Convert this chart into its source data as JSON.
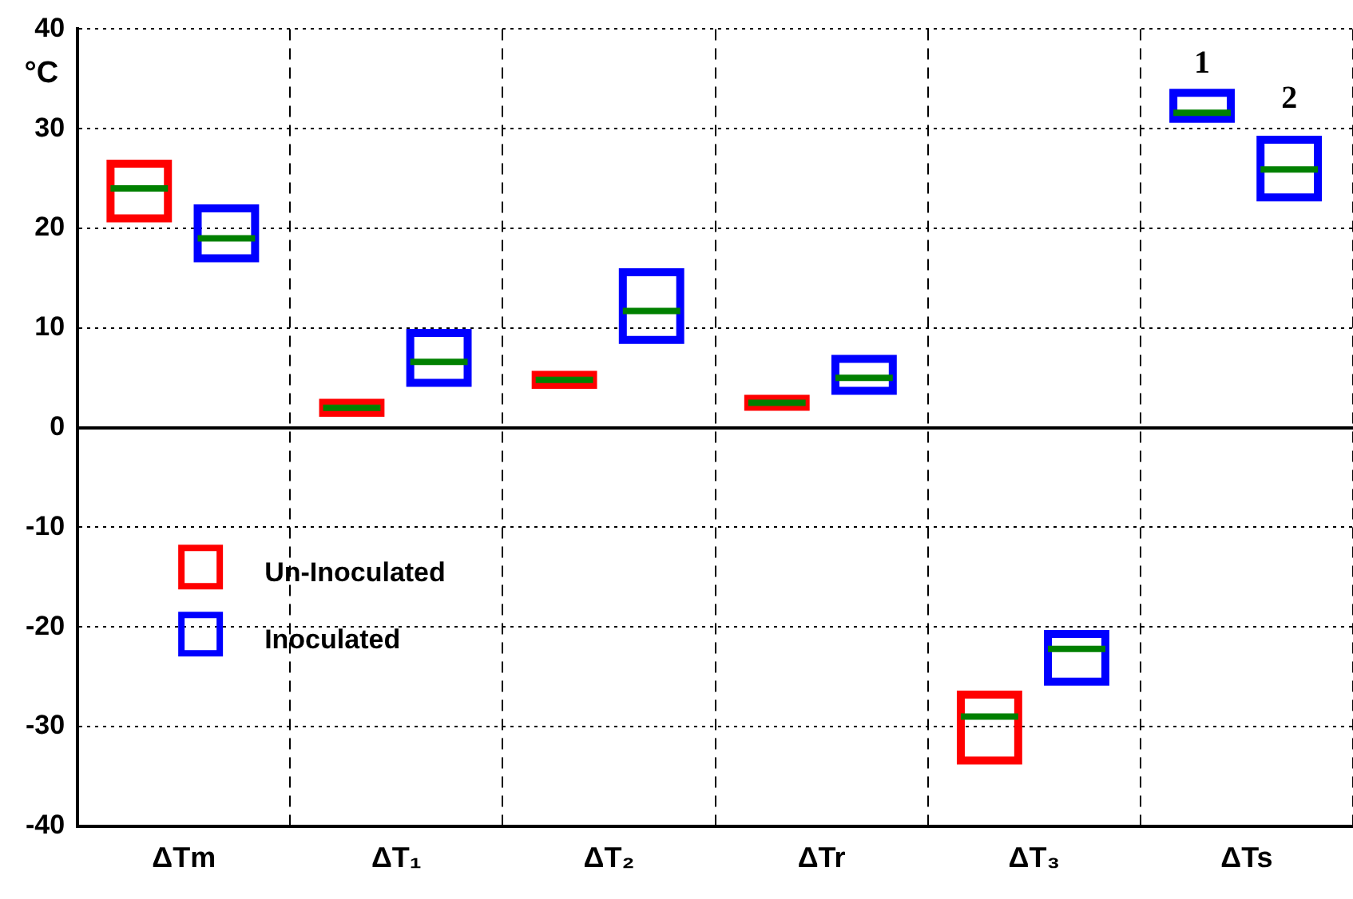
{
  "chart_data": {
    "type": "box",
    "ylabel": "°C",
    "categories": [
      "ΔTm",
      "ΔT₁",
      "ΔT₂",
      "ΔTr",
      "ΔT₃",
      "ΔTs"
    ],
    "series": [
      {
        "name": "Un-Inoculated",
        "color": "#ff0000",
        "boxes": [
          {
            "low": 21,
            "q1": 21,
            "median": 24,
            "q3": 26.5,
            "high": 26.5
          },
          {
            "low": 1.5,
            "q1": 1.5,
            "median": 2,
            "q3": 2.5,
            "high": 2.5
          },
          {
            "low": 4.3,
            "q1": 4.3,
            "median": 4.8,
            "q3": 5.3,
            "high": 5.3
          },
          {
            "low": 2.1,
            "q1": 2.1,
            "median": 2.5,
            "q3": 2.9,
            "high": 2.9
          },
          {
            "low": -33.4,
            "q1": -33.4,
            "median": -29,
            "q3": -26.8,
            "high": -26.8
          },
          null
        ]
      },
      {
        "color": "#0000ff",
        "boxes": [
          null,
          null,
          null,
          null,
          null,
          {
            "low": 31,
            "q1": 31,
            "median": 31.6,
            "q3": 33.6,
            "high": 33.6
          }
        ]
      },
      {
        "name": "Inoculated",
        "color": "#0000ff",
        "boxes": [
          {
            "low": 17,
            "q1": 17,
            "median": 19,
            "q3": 22,
            "high": 22
          },
          {
            "low": 4.5,
            "q1": 4.5,
            "median": 6.6,
            "q3": 9.5,
            "high": 9.5
          },
          {
            "low": 8.8,
            "q1": 8.8,
            "median": 11.7,
            "q3": 15.6,
            "high": 15.6
          },
          {
            "low": 3.7,
            "q1": 3.7,
            "median": 5,
            "q3": 6.9,
            "high": 6.9
          },
          {
            "low": -25.5,
            "q1": -25.5,
            "median": -22.2,
            "q3": -20.7,
            "high": -20.7
          },
          {
            "low": 23.1,
            "q1": 23.1,
            "median": 25.9,
            "q3": 28.9,
            "high": 28.9
          }
        ]
      }
    ],
    "annotations": [
      "1",
      "2"
    ],
    "ylim": [
      -40,
      40
    ],
    "yticks": [
      -40,
      -30,
      -20,
      -10,
      0,
      10,
      20,
      30,
      40
    ],
    "grid": true,
    "legend": "bottom left"
  }
}
